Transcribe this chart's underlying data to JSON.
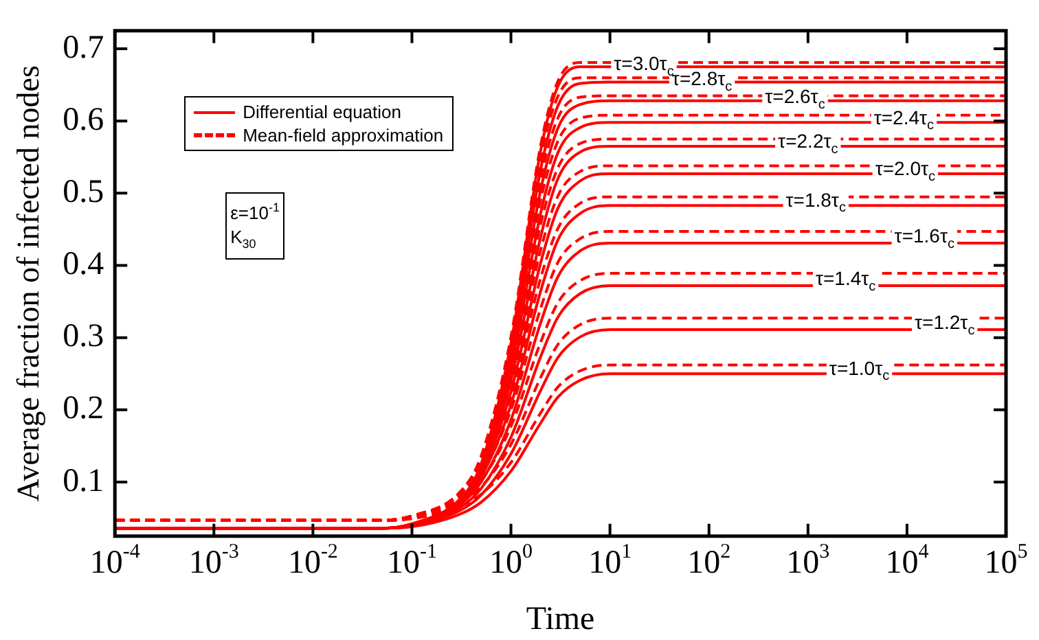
{
  "chart_data": {
    "type": "line",
    "xlabel": "Time",
    "ylabel": "Average fraction of infected nodes",
    "log": "x",
    "legend": "top left",
    "marker": "none",
    "xlim": [
      0.0001,
      100000
    ],
    "ylim": [
      0.025,
      0.725
    ],
    "xticks": [
      {
        "value": 0.0001,
        "label": "10$^{-4}$"
      },
      {
        "value": 0.001,
        "label": "10$^{-3}$"
      },
      {
        "value": 0.01,
        "label": "10$^{-2}$"
      },
      {
        "value": 0.1,
        "label": "10$^{-1}$"
      },
      {
        "value": 1,
        "label": "10$^{0}$"
      },
      {
        "value": 10,
        "label": "10$^{1}$"
      },
      {
        "value": 100,
        "label": "10$^{2}$"
      },
      {
        "value": 1000,
        "label": "10$^{3}$"
      },
      {
        "value": 10000,
        "label": "10$^{4}$"
      },
      {
        "value": 100000,
        "label": "10$^{5}$"
      }
    ],
    "yticks": [
      0.1,
      0.2,
      0.3,
      0.4,
      0.5,
      0.6,
      0.7
    ],
    "x": [
      0.0001,
      0.05,
      0.1,
      0.3,
      0.5,
      1,
      2,
      3,
      5,
      10,
      100000
    ],
    "series": [
      {
        "name": "Differential equation",
        "color": "#ff0000",
        "line_style": "solid",
        "values": [
          0.036,
          0.036,
          0.038,
          0.055,
          0.072,
          0.115,
          0.182,
          0.218,
          0.241,
          0.25,
          0.25
        ]
      },
      {
        "color": "#ff0000",
        "line_style": "solid",
        "values": [
          0.036,
          0.036,
          0.039,
          0.06,
          0.082,
          0.139,
          0.227,
          0.273,
          0.301,
          0.311,
          0.311
        ]
      },
      {
        "color": "#ff0000",
        "line_style": "solid",
        "values": [
          0.036,
          0.036,
          0.039,
          0.064,
          0.091,
          0.162,
          0.274,
          0.329,
          0.361,
          0.372,
          0.372
        ]
      },
      {
        "color": "#ff0000",
        "line_style": "solid",
        "values": [
          0.036,
          0.036,
          0.04,
          0.068,
          0.1,
          0.186,
          0.321,
          0.385,
          0.42,
          0.431,
          0.431
        ]
      },
      {
        "color": "#ff0000",
        "line_style": "solid",
        "values": [
          0.036,
          0.036,
          0.04,
          0.071,
          0.107,
          0.207,
          0.365,
          0.436,
          0.472,
          0.483,
          0.483
        ]
      },
      {
        "color": "#ff0000",
        "line_style": "solid",
        "values": [
          0.036,
          0.036,
          0.041,
          0.073,
          0.112,
          0.225,
          0.404,
          0.48,
          0.517,
          0.527,
          0.527
        ]
      },
      {
        "color": "#ff0000",
        "line_style": "solid",
        "values": [
          0.036,
          0.036,
          0.041,
          0.074,
          0.116,
          0.241,
          0.44,
          0.521,
          0.557,
          0.565,
          0.565
        ]
      },
      {
        "color": "#ff0000",
        "line_style": "solid",
        "values": [
          0.036,
          0.036,
          0.042,
          0.075,
          0.12,
          0.256,
          0.473,
          0.557,
          0.591,
          0.598,
          0.598
        ]
      },
      {
        "color": "#ff0000",
        "line_style": "solid",
        "values": [
          0.036,
          0.036,
          0.042,
          0.075,
          0.122,
          0.269,
          0.505,
          0.591,
          0.623,
          0.628,
          0.628
        ]
      },
      {
        "color": "#ff0000",
        "line_style": "solid",
        "values": [
          0.036,
          0.036,
          0.042,
          0.075,
          0.124,
          0.281,
          0.534,
          0.622,
          0.652,
          0.654,
          0.654
        ]
      },
      {
        "color": "#ff0000",
        "line_style": "solid",
        "values": [
          0.036,
          0.036,
          0.042,
          0.074,
          0.125,
          0.292,
          0.56,
          0.649,
          0.675,
          0.675,
          0.675
        ]
      },
      {
        "name": "Mean-field approximation",
        "color": "#ff0000",
        "line_style": "dashed",
        "values": [
          0.047,
          0.047,
          0.049,
          0.066,
          0.083,
          0.127,
          0.196,
          0.232,
          0.254,
          0.262,
          0.262
        ]
      },
      {
        "color": "#ff0000",
        "line_style": "dashed",
        "values": [
          0.047,
          0.047,
          0.05,
          0.071,
          0.093,
          0.152,
          0.245,
          0.291,
          0.318,
          0.327,
          0.327
        ]
      },
      {
        "color": "#ff0000",
        "line_style": "dashed",
        "values": [
          0.047,
          0.047,
          0.05,
          0.075,
          0.102,
          0.177,
          0.294,
          0.349,
          0.379,
          0.389,
          0.389
        ]
      },
      {
        "color": "#ff0000",
        "line_style": "dashed",
        "values": [
          0.047,
          0.047,
          0.051,
          0.078,
          0.11,
          0.2,
          0.341,
          0.405,
          0.437,
          0.447,
          0.447
        ]
      },
      {
        "color": "#ff0000",
        "line_style": "dashed",
        "values": [
          0.047,
          0.047,
          0.051,
          0.081,
          0.116,
          0.219,
          0.383,
          0.452,
          0.486,
          0.495,
          0.495
        ]
      },
      {
        "color": "#ff0000",
        "line_style": "dashed",
        "values": [
          0.047,
          0.047,
          0.052,
          0.082,
          0.122,
          0.238,
          0.422,
          0.497,
          0.53,
          0.538,
          0.538
        ]
      },
      {
        "color": "#ff0000",
        "line_style": "dashed",
        "values": [
          0.047,
          0.047,
          0.052,
          0.083,
          0.126,
          0.253,
          0.458,
          0.536,
          0.569,
          0.575,
          0.575
        ]
      },
      {
        "color": "#ff0000",
        "line_style": "dashed",
        "values": [
          0.047,
          0.047,
          0.053,
          0.084,
          0.129,
          0.268,
          0.491,
          0.573,
          0.604,
          0.608,
          0.608
        ]
      },
      {
        "color": "#ff0000",
        "line_style": "dashed",
        "values": [
          0.047,
          0.047,
          0.053,
          0.084,
          0.131,
          0.28,
          0.521,
          0.605,
          0.633,
          0.635,
          0.635
        ]
      },
      {
        "color": "#ff0000",
        "line_style": "dashed",
        "values": [
          0.047,
          0.047,
          0.053,
          0.084,
          0.133,
          0.292,
          0.55,
          0.635,
          0.66,
          0.66,
          0.66
        ]
      },
      {
        "color": "#ff0000",
        "line_style": "dashed",
        "values": [
          0.047,
          0.047,
          0.053,
          0.085,
          0.136,
          0.301,
          0.567,
          0.656,
          0.681,
          0.681,
          0.681
        ]
      }
    ],
    "annotations": [
      "ε=10$^{-1}$",
      "K$_{30}$",
      {
        "text": "τ=3.0τ$_{c}$",
        "x": 22,
        "y": 0.678
      },
      {
        "text": "τ=2.8τ$_{c}$",
        "x": 85,
        "y": 0.657
      },
      {
        "text": "τ=2.6τ$_{c}$",
        "x": 740,
        "y": 0.632
      },
      {
        "text": "τ=2.4τ$_{c}$",
        "x": 9300,
        "y": 0.603
      },
      {
        "text": "τ=2.2τ$_{c}$",
        "x": 1000,
        "y": 0.57
      },
      {
        "text": "τ=2.0τ$_{c}$",
        "x": 9600,
        "y": 0.532
      },
      {
        "text": "τ=1.8τ$_{c}$",
        "x": 1200,
        "y": 0.489
      },
      {
        "text": "τ=1.6τ$_{c}$",
        "x": 15000,
        "y": 0.439
      },
      {
        "text": "τ=1.4τ$_{c}$",
        "x": 2400,
        "y": 0.38
      },
      {
        "text": "τ=1.2τ$_{c}$",
        "x": 24000,
        "y": 0.319
      },
      {
        "text": "τ=1.0τ$_{c}$",
        "x": 3300,
        "y": 0.256
      }
    ]
  }
}
